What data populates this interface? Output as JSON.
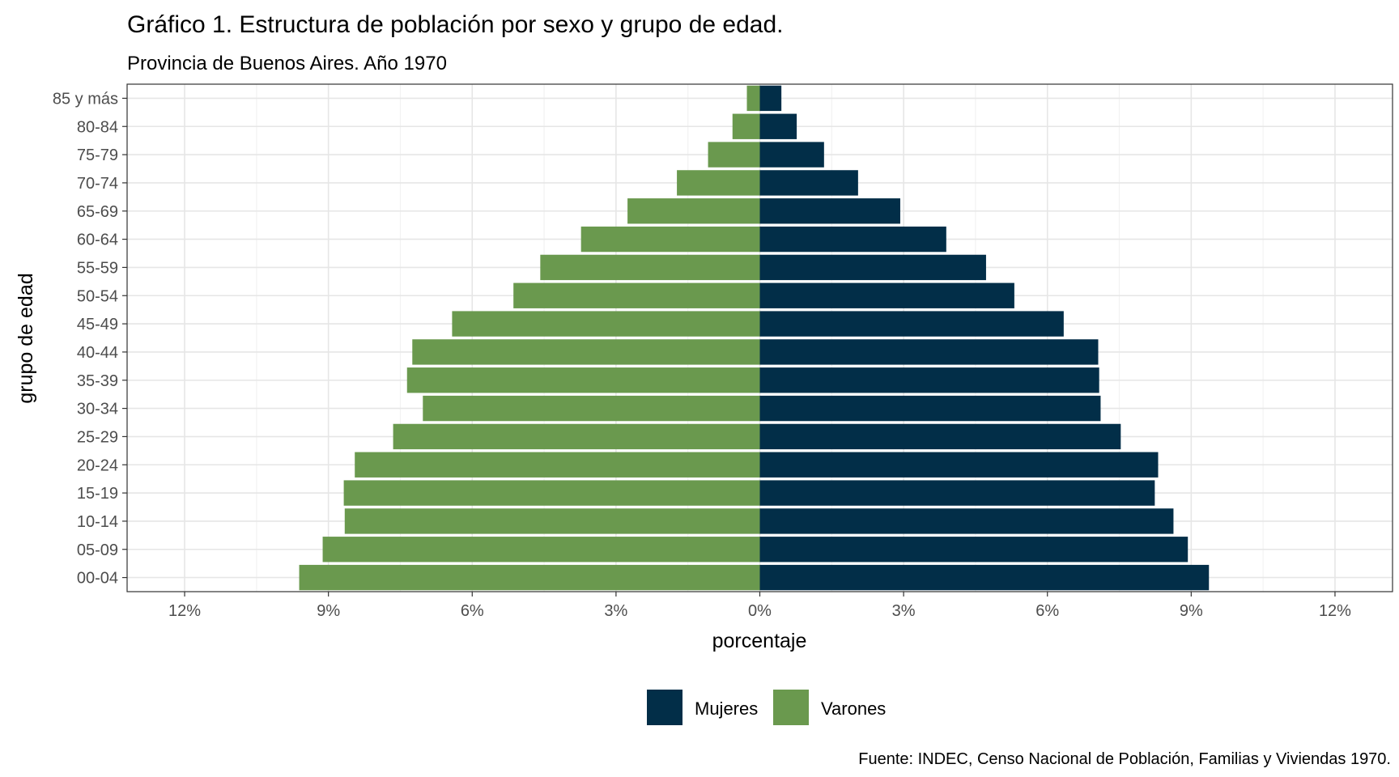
{
  "chart_data": {
    "type": "bar",
    "orientation": "horizontal-population-pyramid",
    "title": "Gráfico 1. Estructura de población por sexo y grupo de edad.",
    "subtitle": "Provincia de Buenos Aires. Año 1970",
    "xlabel": "porcentaje",
    "ylabel": "grupo de edad",
    "caption": "Fuente: INDEC, Censo Nacional de Población, Familias y Viviendas 1970.",
    "xlim": [
      -13.2,
      13.2
    ],
    "x_ticks": [
      -12,
      -9,
      -6,
      -3,
      0,
      3,
      6,
      9,
      12
    ],
    "x_tick_labels": [
      "12%",
      "9%",
      "6%",
      "3%",
      "0%",
      "3%",
      "6%",
      "9%",
      "12%"
    ],
    "categories": [
      "00-04",
      "05-09",
      "10-14",
      "15-19",
      "20-24",
      "25-29",
      "30-34",
      "35-39",
      "40-44",
      "45-49",
      "50-54",
      "55-59",
      "60-64",
      "65-69",
      "70-74",
      "75-79",
      "80-84",
      "85 y más"
    ],
    "series": [
      {
        "name": "Mujeres",
        "color": "#022e48",
        "side": "right",
        "values": [
          9.37,
          8.93,
          8.63,
          8.24,
          8.31,
          7.53,
          7.11,
          7.08,
          7.06,
          6.34,
          5.31,
          4.72,
          3.89,
          2.93,
          2.05,
          1.34,
          0.77,
          0.45
        ]
      },
      {
        "name": "Varones",
        "color": "#6a994e",
        "side": "left",
        "values": [
          9.61,
          9.12,
          8.66,
          8.68,
          8.45,
          7.65,
          7.03,
          7.36,
          7.25,
          6.42,
          5.14,
          4.58,
          3.73,
          2.76,
          1.73,
          1.08,
          0.57,
          0.27
        ]
      }
    ],
    "legend": {
      "position": "bottom",
      "items": [
        "Mujeres",
        "Varones"
      ]
    },
    "grid": true
  }
}
